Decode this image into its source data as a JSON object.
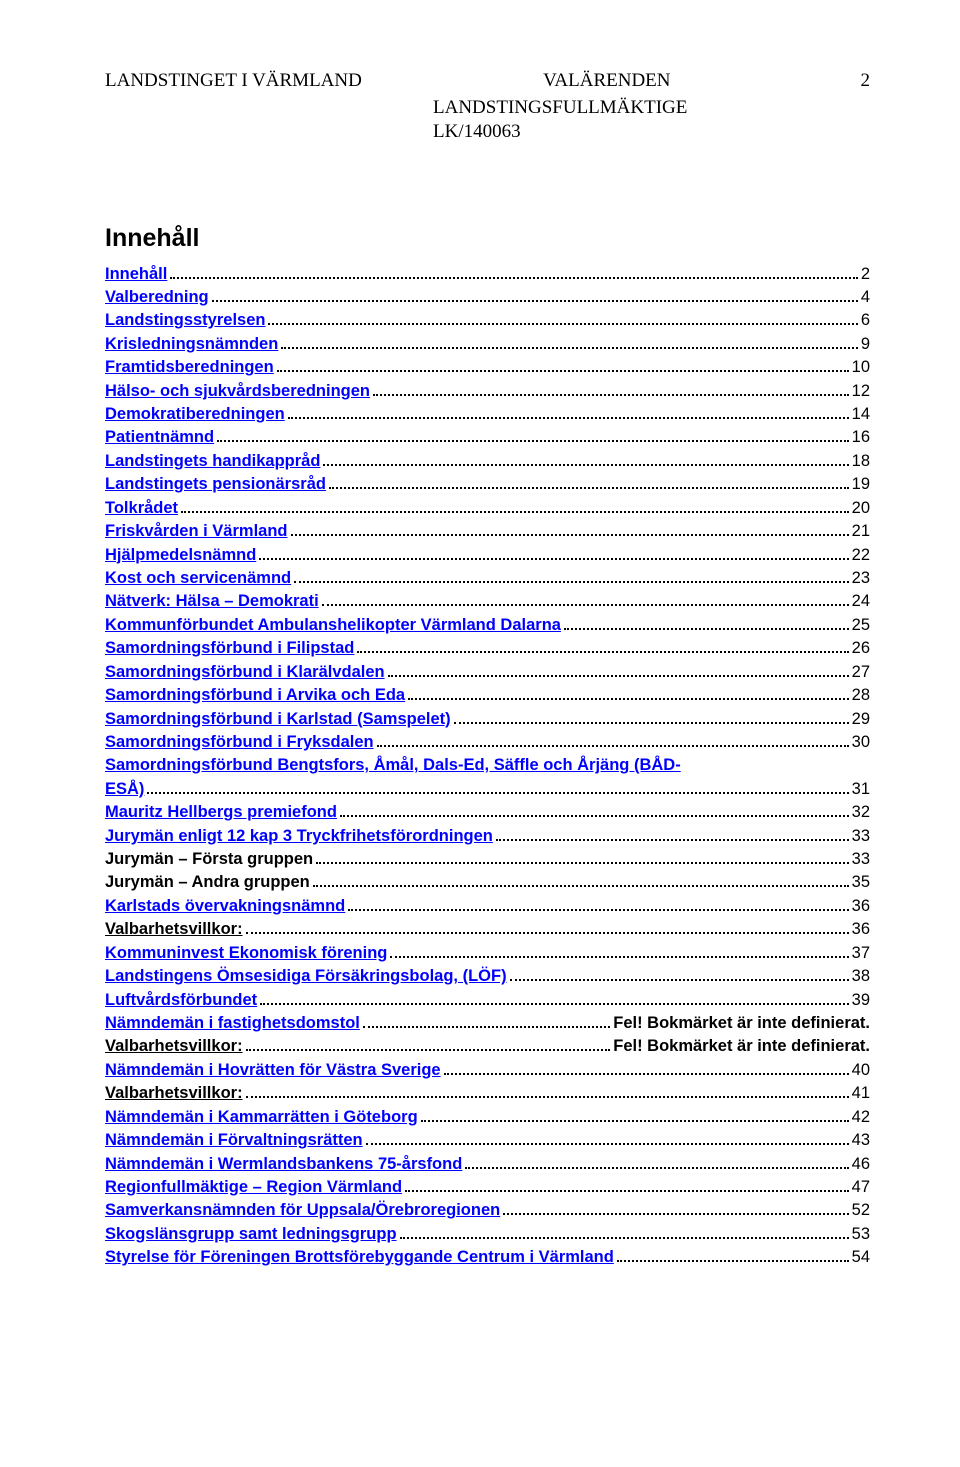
{
  "header": {
    "left": "LANDSTINGET I VÄRMLAND",
    "center": "VALÄRENDEN",
    "pageno": "2",
    "sub1": "LANDSTINGSFULLMÄKTIGE",
    "sub2": "LK/140063"
  },
  "title": "Innehåll",
  "error_text": "Fel! Bokmärket är inte definierat.",
  "toc": [
    {
      "label": "Innehåll",
      "page": "2",
      "style": "link"
    },
    {
      "label": "Valberedning",
      "page": "4",
      "style": "link"
    },
    {
      "label": "Landstingsstyrelsen",
      "page": "6",
      "style": "link"
    },
    {
      "label": "Krisledningsnämnden",
      "page": "9",
      "style": "link"
    },
    {
      "label": "Framtidsberedningen",
      "page": "10",
      "style": "link"
    },
    {
      "label": "Hälso- och sjukvårdsberedningen",
      "page": "12",
      "style": "link"
    },
    {
      "label": "Demokratiberedningen",
      "page": "14",
      "style": "link"
    },
    {
      "label": "Patientnämnd",
      "page": "16",
      "style": "link"
    },
    {
      "label": "Landstingets handikappråd",
      "page": "18",
      "style": "link"
    },
    {
      "label": "Landstingets pensionärsråd",
      "page": "19",
      "style": "link"
    },
    {
      "label": "Tolkrådet",
      "page": "20",
      "style": "link"
    },
    {
      "label": "Friskvården i Värmland",
      "page": "21",
      "style": "link"
    },
    {
      "label": "Hjälpmedelsnämnd",
      "page": "22",
      "style": "link"
    },
    {
      "label": "Kost och servicenämnd",
      "page": "23",
      "style": "link"
    },
    {
      "label": "Nätverk: Hälsa – Demokrati",
      "page": "24",
      "style": "link"
    },
    {
      "label": "Kommunförbundet Ambulanshelikopter Värmland Dalarna",
      "page": "25",
      "style": "link"
    },
    {
      "label": "Samordningsförbund i Filipstad",
      "page": "26",
      "style": "link"
    },
    {
      "label": "Samordningsförbund i Klarälvdalen",
      "page": "27",
      "style": "link"
    },
    {
      "label": "Samordningsförbund i Arvika och Eda",
      "page": "28",
      "style": "link"
    },
    {
      "label": "Samordningsförbund i Karlstad (Samspelet)",
      "page": "29",
      "style": "link"
    },
    {
      "label": "Samordningsförbund i Fryksdalen",
      "page": "30",
      "style": "link"
    },
    {
      "label": "Samordningsförbund Bengtsfors, Åmål, Dals-Ed, Säffle och Årjäng (BÅD-ESÅ)",
      "page": "31",
      "style": "link",
      "wrap": true
    },
    {
      "label": "Mauritz Hellbergs premiefond",
      "page": "32",
      "style": "link"
    },
    {
      "label": "Jurymän enligt 12 kap 3 Tryckfrihetsförordningen",
      "page": "33",
      "style": "link"
    },
    {
      "label": "Jurymän – Första gruppen",
      "page": "33",
      "style": "plain"
    },
    {
      "label": "Jurymän – Andra gruppen",
      "page": "35",
      "style": "plain"
    },
    {
      "label": "Karlstads övervakningsnämnd",
      "page": "36",
      "style": "link"
    },
    {
      "label": "Valbarhetsvillkor:",
      "page": "36",
      "style": "linkblack"
    },
    {
      "label": "Kommuninvest Ekonomisk förening",
      "page": "37",
      "style": "link"
    },
    {
      "label": "Landstingens Ömsesidiga Försäkringsbolag, (LÖF)",
      "page": "38",
      "style": "link"
    },
    {
      "label": "Luftvårdsförbundet",
      "page": "39",
      "style": "link"
    },
    {
      "label": "Nämndemän i fastighetsdomstol",
      "page": "",
      "style": "link",
      "error": true
    },
    {
      "label": "Valbarhetsvillkor:",
      "page": "",
      "style": "linkblack",
      "error": true
    },
    {
      "label": "Nämndemän i Hovrätten för Västra Sverige",
      "page": "40",
      "style": "link"
    },
    {
      "label": "Valbarhetsvillkor:",
      "page": "41",
      "style": "linkblack"
    },
    {
      "label": "Nämndemän i Kammarrätten i Göteborg",
      "page": "42",
      "style": "link"
    },
    {
      "label": "Nämndemän i Förvaltningsrätten",
      "page": "43",
      "style": "link"
    },
    {
      "label": "Nämndemän i Wermlandsbankens 75-årsfond",
      "page": "46",
      "style": "link"
    },
    {
      "label": "Regionfullmäktige – Region Värmland",
      "page": "47",
      "style": "link"
    },
    {
      "label": "Samverkansnämnden för Uppsala/Örebroregionen",
      "page": "52",
      "style": "link"
    },
    {
      "label": "Skogslänsgrupp samt ledningsgrupp",
      "page": "53",
      "style": "link"
    },
    {
      "label": "Styrelse för Föreningen Brottsförebyggande Centrum i Värmland",
      "page": "54",
      "style": "link"
    }
  ]
}
